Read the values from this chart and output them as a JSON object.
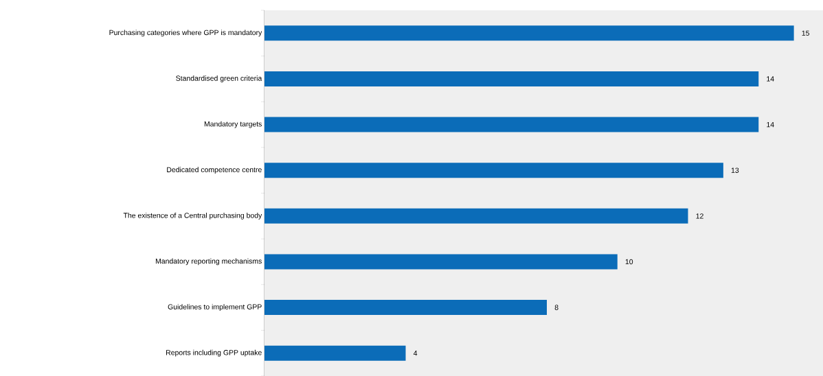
{
  "chart_data": {
    "type": "bar",
    "orientation": "horizontal",
    "categories": [
      "Purchasing categories where GPP is mandatory",
      "Standardised green criteria",
      "Mandatory targets",
      "Dedicated competence centre",
      "The existence of a Central purchasing body",
      "Mandatory reporting mechanisms",
      "Guidelines to implement GPP",
      "Reports including GPP uptake"
    ],
    "values": [
      15,
      14,
      14,
      13,
      12,
      10,
      8,
      4
    ],
    "color": "#0b6cb8",
    "data_labels": true
  }
}
